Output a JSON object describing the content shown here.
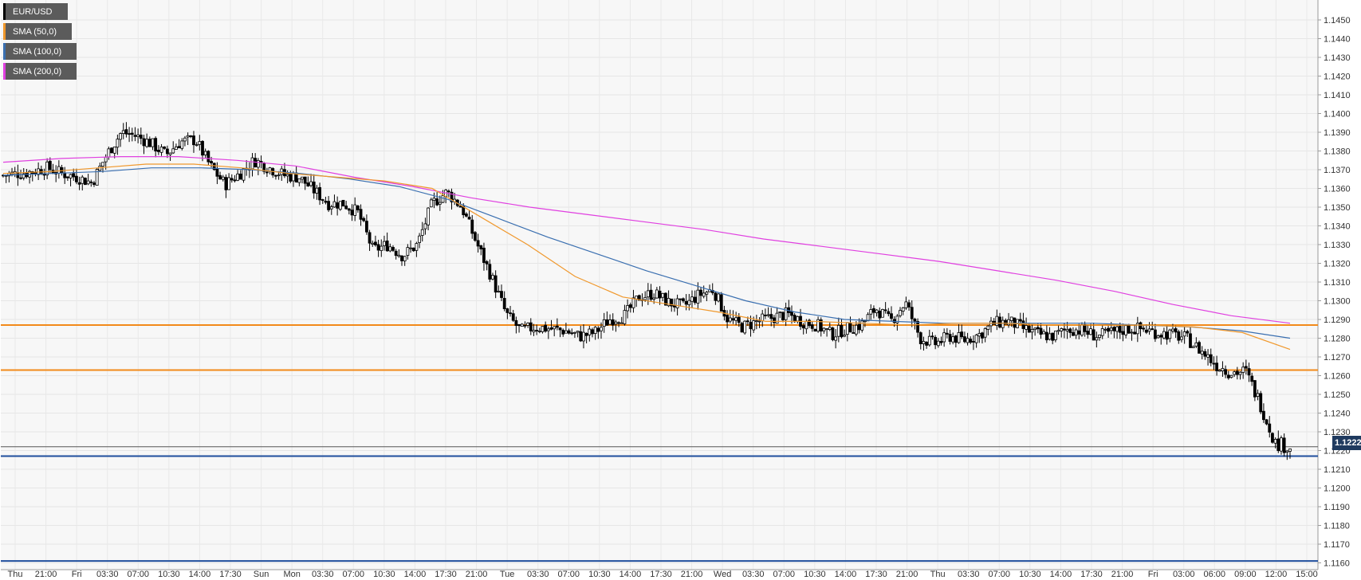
{
  "chart_data": {
    "type": "candlestick",
    "symbol": "EUR/USD",
    "ylim": [
      1.1157,
      1.1457
    ],
    "y_ticks": [
      "1.1160",
      "1.1170",
      "1.1180",
      "1.1190",
      "1.1200",
      "1.1210",
      "1.1220",
      "1.1230",
      "1.1240",
      "1.1250",
      "1.1260",
      "1.1270",
      "1.1280",
      "1.1290",
      "1.1300",
      "1.1310",
      "1.1320",
      "1.1330",
      "1.1340",
      "1.1350",
      "1.1360",
      "1.1370",
      "1.1380",
      "1.1390",
      "1.1400",
      "1.1410",
      "1.1420",
      "1.1430",
      "1.1440",
      "1.1450"
    ],
    "x_ticks": [
      "Thu",
      "21:00",
      "Fri",
      "03:30",
      "07:00",
      "10:30",
      "14:00",
      "17:30",
      "Sun",
      "Mon",
      "03:30",
      "07:00",
      "10:30",
      "14:00",
      "17:30",
      "21:00",
      "Tue",
      "03:30",
      "07:00",
      "10:30",
      "14:00",
      "17:30",
      "21:00",
      "Wed",
      "03:30",
      "07:00",
      "10:30",
      "14:00",
      "17:30",
      "21:00",
      "Thu",
      "03:30",
      "07:00",
      "10:30",
      "14:00",
      "17:30",
      "21:00",
      "Fri",
      "03:00",
      "06:00",
      "09:00",
      "12:00",
      "15:00"
    ],
    "legend": [
      {
        "label": "EUR/USD",
        "color": "#000000"
      },
      {
        "label": "SMA (50,0)",
        "color": "#f0982c"
      },
      {
        "label": "SMA (100,0)",
        "color": "#3a6fb0"
      },
      {
        "label": "SMA (200,0)",
        "color": "#e040e0"
      }
    ],
    "last_price": "1.12220",
    "horizontal_levels": [
      {
        "value": 1.1287,
        "color": "#f28a1a"
      },
      {
        "value": 1.1263,
        "color": "#f28a1a"
      },
      {
        "value": 1.1217,
        "color": "#1f4e9c"
      },
      {
        "value": 1.1161,
        "color": "#1f4e9c"
      }
    ],
    "close_path": [
      1.1367,
      1.1368,
      1.1369,
      1.1371,
      1.1368,
      1.1366,
      1.1363,
      1.1378,
      1.139,
      1.1388,
      1.1384,
      1.1378,
      1.1385,
      1.1386,
      1.1372,
      1.1362,
      1.1368,
      1.1375,
      1.1371,
      1.1367,
      1.1366,
      1.1359,
      1.1352,
      1.1352,
      1.1347,
      1.1327,
      1.133,
      1.1324,
      1.133,
      1.1352,
      1.1358,
      1.135,
      1.1331,
      1.1313,
      1.1293,
      1.1284,
      1.1286,
      1.1285,
      1.1284,
      1.1281,
      1.1283,
      1.129,
      1.1292,
      1.1302,
      1.1304,
      1.1299,
      1.1297,
      1.1303,
      1.1306,
      1.129,
      1.1286,
      1.1289,
      1.1291,
      1.1293,
      1.1289,
      1.1287,
      1.1282,
      1.1285,
      1.1287,
      1.1296,
      1.1289,
      1.1299,
      1.128,
      1.1277,
      1.1281,
      1.1279,
      1.1282,
      1.1288,
      1.1289,
      1.1285,
      1.1282,
      1.1281,
      1.1285,
      1.1284,
      1.1281,
      1.1283,
      1.1285,
      1.1285,
      1.1283,
      1.1282,
      1.128,
      1.1273,
      1.1266,
      1.1262,
      1.1262,
      1.1245,
      1.1224,
      1.1222
    ],
    "sma_50": [
      1.1368,
      1.1369,
      1.1371,
      1.1373,
      1.1373,
      1.1371,
      1.1368,
      1.1366,
      1.1364,
      1.136,
      1.1345,
      1.133,
      1.1313,
      1.1302,
      1.1298,
      1.1294,
      1.1289,
      1.1289,
      1.1288,
      1.1287,
      1.1288,
      1.1288,
      1.1287,
      1.1287,
      1.1287,
      1.1286,
      1.1283,
      1.1274
    ],
    "sma_100": [
      1.1367,
      1.1368,
      1.1369,
      1.1371,
      1.1371,
      1.137,
      1.1368,
      1.1365,
      1.1361,
      1.1354,
      1.1344,
      1.1334,
      1.1325,
      1.1316,
      1.1308,
      1.13,
      1.1294,
      1.129,
      1.1289,
      1.1288,
      1.1288,
      1.1288,
      1.1288,
      1.1287,
      1.1286,
      1.1284,
      1.128
    ],
    "sma_200": [
      1.1374,
      1.1376,
      1.1377,
      1.1377,
      1.1375,
      1.1372,
      1.1366,
      1.1361,
      1.1355,
      1.135,
      1.1346,
      1.1342,
      1.1338,
      1.1333,
      1.1329,
      1.1325,
      1.1321,
      1.1316,
      1.1311,
      1.1305,
      1.1298,
      1.1292,
      1.1288
    ]
  }
}
